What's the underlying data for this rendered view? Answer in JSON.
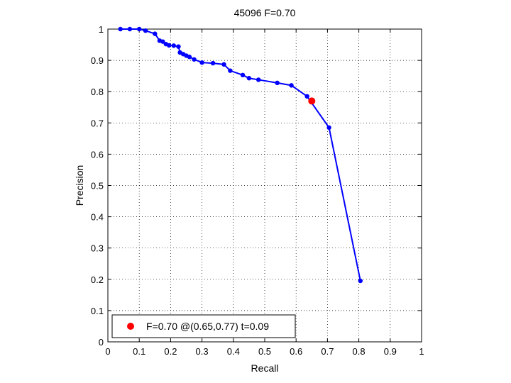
{
  "chart_data": {
    "type": "line",
    "title": "45096 F=0.70",
    "xlabel": "Recall",
    "ylabel": "Precision",
    "xlim": [
      0,
      1
    ],
    "ylim": [
      0,
      1
    ],
    "grid": true,
    "x_ticks": [
      "0",
      "0.1",
      "0.2",
      "0.3",
      "0.4",
      "0.5",
      "0.6",
      "0.7",
      "0.8",
      "0.9",
      "1"
    ],
    "y_ticks": [
      "0",
      "0.1",
      "0.2",
      "0.3",
      "0.4",
      "0.5",
      "0.6",
      "0.7",
      "0.8",
      "0.9",
      "1"
    ],
    "series": [
      {
        "color": "#0000ff",
        "points": [
          [
            0.04,
            1.0
          ],
          [
            0.07,
            1.0
          ],
          [
            0.1,
            1.0
          ],
          [
            0.12,
            0.995
          ],
          [
            0.15,
            0.985
          ],
          [
            0.165,
            0.963
          ],
          [
            0.175,
            0.96
          ],
          [
            0.185,
            0.952
          ],
          [
            0.195,
            0.948
          ],
          [
            0.21,
            0.947
          ],
          [
            0.225,
            0.944
          ],
          [
            0.23,
            0.925
          ],
          [
            0.24,
            0.92
          ],
          [
            0.25,
            0.915
          ],
          [
            0.26,
            0.911
          ],
          [
            0.275,
            0.903
          ],
          [
            0.3,
            0.893
          ],
          [
            0.335,
            0.891
          ],
          [
            0.37,
            0.887
          ],
          [
            0.39,
            0.867
          ],
          [
            0.43,
            0.853
          ],
          [
            0.45,
            0.843
          ],
          [
            0.48,
            0.838
          ],
          [
            0.54,
            0.828
          ],
          [
            0.585,
            0.82
          ],
          [
            0.635,
            0.785
          ],
          [
            0.705,
            0.685
          ],
          [
            0.805,
            0.195
          ]
        ]
      }
    ],
    "highlight": {
      "x": 0.65,
      "y": 0.77,
      "color": "#ff0000"
    },
    "legend": {
      "text": "F=0.70 @(0.65,0.77) t=0.09",
      "placement": "bottom-left"
    }
  }
}
